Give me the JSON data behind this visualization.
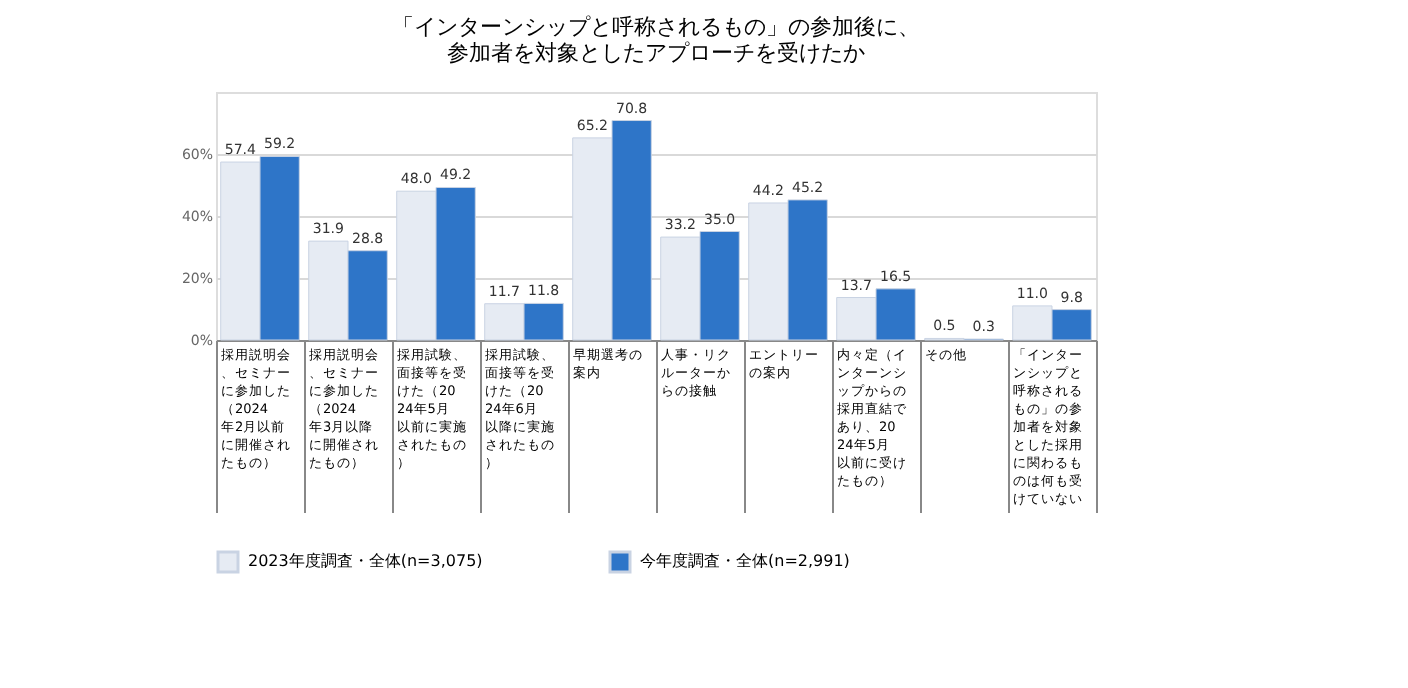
{
  "chart_data": {
    "type": "bar",
    "title": [
      "「インターンシップと呼称されるもの」の参加後に、",
      "参加者を対象としたアプローチを受けたか"
    ],
    "categories": [
      "採用説明会、セミナーに参加した（2024年2月以前に開催されたもの）",
      "採用説明会、セミナーに参加した（2024年3月以降に開催されたもの）",
      "採用試験、面接等を受けた（2024年5月以前に実施されたもの）",
      "採用試験、面接等を受けた（2024年6月以降に実施されたもの）",
      "早期選考の案内",
      "人事・リクルーターからの接触",
      "エントリーの案内",
      "内々定（インターンシップからの採用直結であり、2024年5月以前に受けたもの）",
      "その他",
      "「インターンシップと呼称されるもの」の参加者を対象とした採用に関わるものは何も受けていない"
    ],
    "series": [
      {
        "name": "2023年度調査・全体(n=3,075)",
        "color": "#e6ebf3",
        "values": [
          57.4,
          31.9,
          48.0,
          11.7,
          65.2,
          33.2,
          44.2,
          13.7,
          0.5,
          11.0
        ],
        "value_labels": [
          "57.4",
          "31.9",
          "48.0",
          "11.7",
          "65.2",
          "33.2",
          "44.2",
          "13.7",
          "0.5",
          "11.0"
        ]
      },
      {
        "name": "今年度調査・全体(n=2,991)",
        "color": "#2e75c8",
        "values": [
          59.2,
          28.8,
          49.2,
          11.8,
          70.8,
          35.0,
          45.2,
          16.5,
          0.3,
          9.8
        ],
        "value_labels": [
          "59.2",
          "28.8",
          "49.2",
          "11.8",
          "70.8",
          "35.0",
          "45.2",
          "16.5",
          "0.3",
          "9.8"
        ]
      }
    ],
    "ylim": [
      0,
      80
    ],
    "yticks": [
      {
        "value": 0,
        "label": "0%"
      },
      {
        "value": 20,
        "label": "20%"
      },
      {
        "value": 40,
        "label": "40%"
      },
      {
        "value": 60,
        "label": "60%"
      }
    ],
    "grid": "y",
    "legend": "bottom"
  }
}
